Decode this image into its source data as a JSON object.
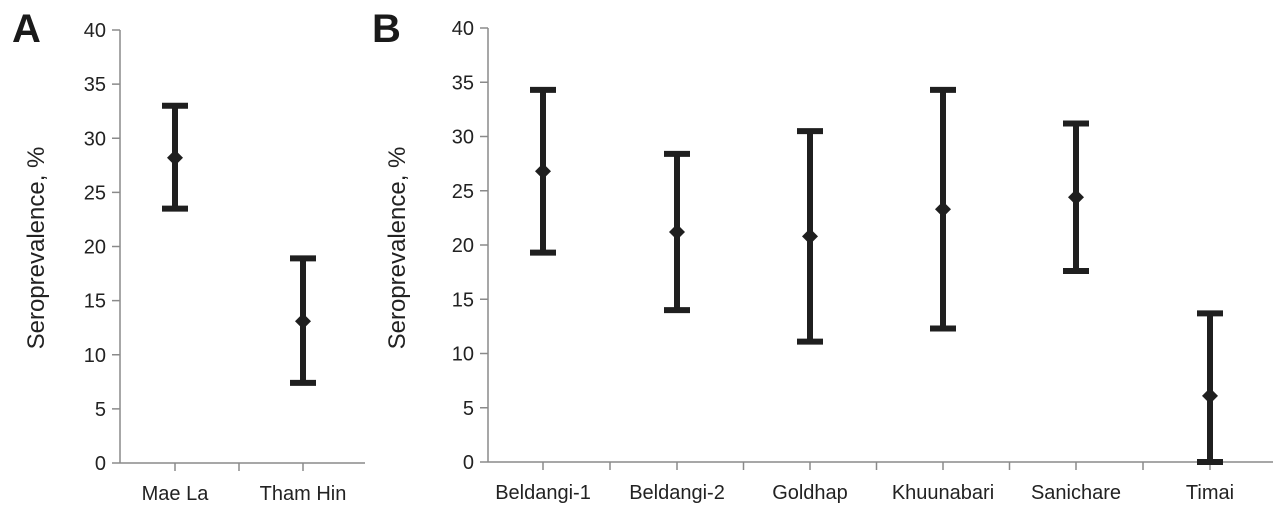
{
  "chart_data": [
    {
      "type": "scatter",
      "panel_label": "A",
      "title": "",
      "xlabel": "",
      "ylabel": "Seroprevalence, %",
      "ylim": [
        0,
        40
      ],
      "yticks": [
        "0",
        "5",
        "10",
        "15",
        "20",
        "25",
        "30",
        "35",
        "40"
      ],
      "grid": false,
      "categories": [
        "Mae La",
        "Tham Hin"
      ],
      "values": [
        28.2,
        13.1
      ],
      "ci_low": [
        23.5,
        7.4
      ],
      "ci_high": [
        33.0,
        18.9
      ]
    },
    {
      "type": "scatter",
      "panel_label": "B",
      "title": "",
      "xlabel": "",
      "ylabel": "Seroprevalence, %",
      "ylim": [
        0,
        40
      ],
      "yticks": [
        "0",
        "5",
        "10",
        "15",
        "20",
        "25",
        "30",
        "35",
        "40"
      ],
      "grid": false,
      "categories": [
        "Beldangi-1",
        "Beldangi-2",
        "Goldhap",
        "Khuunabari",
        "Sanichare",
        "Timai"
      ],
      "values": [
        26.8,
        21.2,
        20.8,
        23.3,
        24.4,
        6.1
      ],
      "ci_low": [
        19.3,
        14.0,
        11.1,
        12.3,
        17.6,
        0.0
      ],
      "ci_high": [
        34.3,
        28.4,
        30.5,
        34.3,
        31.2,
        13.7
      ]
    }
  ]
}
